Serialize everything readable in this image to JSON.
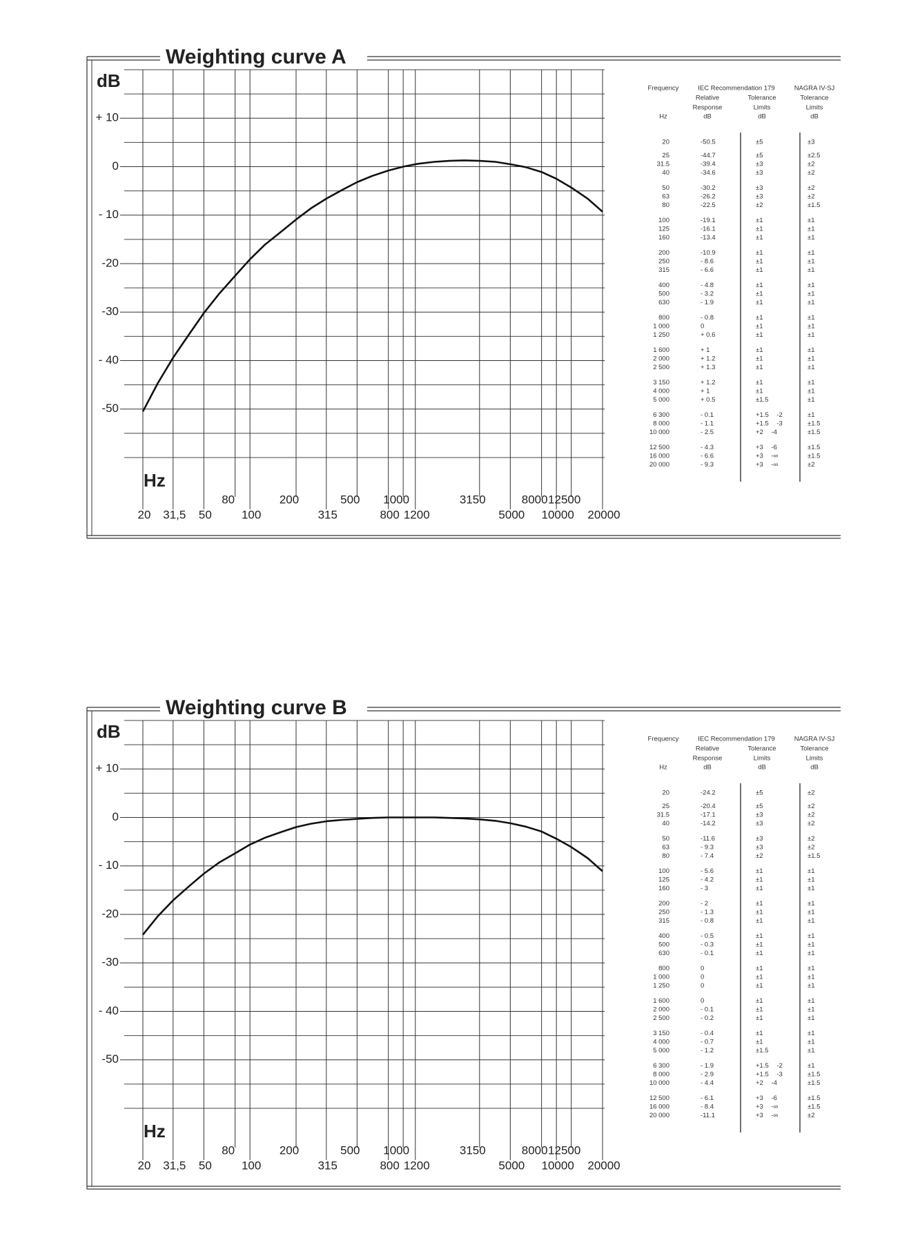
{
  "chart_data": [
    {
      "type": "line",
      "title": "Weighting curve A",
      "y_label": "dB",
      "x_label": "Hz",
      "xscale": "log",
      "grid": true,
      "xlim": [
        20,
        20000
      ],
      "ylim": [
        -60,
        20
      ],
      "xticks": [
        20,
        {
          "value": 31.5,
          "label": "31,5"
        },
        50,
        80,
        100,
        200,
        315,
        500,
        800,
        1000,
        1200,
        3150,
        5000,
        8000,
        10000,
        12500,
        20000
      ],
      "yticks": [
        {
          "value": 10,
          "label": "+ 10"
        },
        0,
        {
          "value": -10,
          "label": "- 10"
        },
        {
          "value": -20,
          "label": "-20"
        },
        {
          "value": -30,
          "label": "-30"
        },
        {
          "value": -40,
          "label": "- 40"
        },
        {
          "value": -50,
          "label": "-50"
        }
      ],
      "minor_yticks": [
        20,
        15,
        5,
        -5,
        -15,
        -25,
        -35,
        -45,
        -55,
        -60
      ],
      "series": [
        {
          "color": "#111111",
          "x": [
            20,
            25,
            31.5,
            40,
            50,
            63,
            80,
            100,
            125,
            160,
            200,
            250,
            315,
            400,
            500,
            630,
            800,
            1000,
            1250,
            1600,
            2000,
            2500,
            3150,
            4000,
            5000,
            6300,
            8000,
            10000,
            12500,
            16000,
            20000
          ],
          "values": [
            -50.5,
            -44.7,
            -39.4,
            -34.6,
            -30.2,
            -26.2,
            -22.5,
            -19.1,
            -16.1,
            -13.4,
            -10.9,
            -8.6,
            -6.6,
            -4.8,
            -3.2,
            -1.9,
            -0.8,
            0,
            0.6,
            1,
            1.2,
            1.3,
            1.2,
            1,
            0.5,
            -0.1,
            -1.1,
            -2.5,
            -4.3,
            -6.6,
            -9.3
          ]
        }
      ],
      "table": {
        "header": {
          "frequency": "Frequency",
          "hz": "Hz",
          "iec": "IEC Recommendation 179",
          "relative": [
            "Relative",
            "Response",
            "dB"
          ],
          "tolerance": [
            "Tolerance",
            "Limits",
            "dB"
          ],
          "nagra": [
            "NAGRA IV-SJ",
            "Tolerance",
            "Limits",
            "dB"
          ]
        },
        "rows": [
          [
            "20",
            "-50.5",
            "±5",
            "±3"
          ],
          [
            "25",
            "-44.7",
            "±5",
            "±2.5"
          ],
          [
            "31.5",
            "-39.4",
            "±3",
            "±2"
          ],
          [
            "40",
            "-34.6",
            "±3",
            "±2"
          ],
          [
            "50",
            "-30.2",
            "±3",
            "±2"
          ],
          [
            "63",
            "-26.2",
            "±3",
            "±2"
          ],
          [
            "80",
            "-22.5",
            "±2",
            "±1.5"
          ],
          [
            "100",
            "-19.1",
            "±1",
            "±1"
          ],
          [
            "125",
            "-16.1",
            "±1",
            "±1"
          ],
          [
            "160",
            "-13.4",
            "±1",
            "±1"
          ],
          [
            "200",
            "-10.9",
            "±1",
            "±1"
          ],
          [
            "250",
            "- 8.6",
            "±1",
            "±1"
          ],
          [
            "315",
            "- 6.6",
            "±1",
            "±1"
          ],
          [
            "400",
            "- 4.8",
            "±1",
            "±1"
          ],
          [
            "500",
            "- 3.2",
            "±1",
            "±1"
          ],
          [
            "630",
            "- 1.9",
            "±1",
            "±1"
          ],
          [
            "800",
            "- 0.8",
            "±1",
            "±1"
          ],
          [
            "1 000",
            "0",
            "±1",
            "±1"
          ],
          [
            "1 250",
            "+ 0.6",
            "±1",
            "±1"
          ],
          [
            "1 600",
            "+ 1",
            "±1",
            "±1"
          ],
          [
            "2 000",
            "+ 1.2",
            "±1",
            "±1"
          ],
          [
            "2 500",
            "+ 1.3",
            "±1",
            "±1"
          ],
          [
            "3 150",
            "+ 1.2",
            "±1",
            "±1"
          ],
          [
            "4 000",
            "+ 1",
            "±1",
            "±1"
          ],
          [
            "5 000",
            "+ 0.5",
            "±1.5",
            "±1"
          ],
          [
            "6 300",
            "- 0.1",
            "+1.5 -2",
            "±1"
          ],
          [
            "8 000",
            "- 1.1",
            "+1.5 -3",
            "±1.5"
          ],
          [
            "10 000",
            "- 2.5",
            "+2 -4",
            "±1.5"
          ],
          [
            "12 500",
            "- 4.3",
            "+3 -6",
            "±1.5"
          ],
          [
            "16 000",
            "- 6.6",
            "+3 -∞",
            "±1.5"
          ],
          [
            "20 000",
            "- 9.3",
            "+3 -∞",
            "±2"
          ]
        ]
      }
    },
    {
      "type": "line",
      "title": "Weighting curve B",
      "y_label": "dB",
      "x_label": "Hz",
      "xscale": "log",
      "grid": true,
      "xlim": [
        20,
        20000
      ],
      "ylim": [
        -60,
        20
      ],
      "xticks": [
        20,
        {
          "value": 31.5,
          "label": "31,5"
        },
        50,
        80,
        100,
        200,
        315,
        500,
        800,
        1000,
        1200,
        3150,
        5000,
        8000,
        10000,
        12500,
        20000
      ],
      "yticks": [
        {
          "value": 10,
          "label": "+ 10"
        },
        0,
        {
          "value": -10,
          "label": "- 10"
        },
        {
          "value": -20,
          "label": "-20"
        },
        {
          "value": -30,
          "label": "-30"
        },
        {
          "value": -40,
          "label": "- 40"
        },
        {
          "value": -50,
          "label": "-50"
        }
      ],
      "minor_yticks": [
        20,
        15,
        5,
        -5,
        -15,
        -25,
        -35,
        -45,
        -55,
        -60
      ],
      "series": [
        {
          "color": "#111111",
          "x": [
            20,
            25,
            31.5,
            40,
            50,
            63,
            80,
            100,
            125,
            160,
            200,
            250,
            315,
            400,
            500,
            630,
            800,
            1000,
            1250,
            1600,
            2000,
            2500,
            3150,
            4000,
            5000,
            6300,
            8000,
            10000,
            12500,
            16000,
            20000
          ],
          "values": [
            -24.2,
            -20.4,
            -17.1,
            -14.2,
            -11.6,
            -9.3,
            -7.4,
            -5.6,
            -4.2,
            -3,
            -2,
            -1.3,
            -0.8,
            -0.5,
            -0.3,
            -0.1,
            0,
            0,
            0,
            0,
            -0.1,
            -0.2,
            -0.4,
            -0.7,
            -1.2,
            -1.9,
            -2.9,
            -4.4,
            -6.1,
            -8.4,
            -11.1
          ]
        }
      ],
      "table": {
        "header": {
          "frequency": "Frequency",
          "hz": "Hz",
          "iec": "IEC Recommendation 179",
          "relative": [
            "Relative",
            "Response",
            "dB"
          ],
          "tolerance": [
            "Tolerance",
            "Limits",
            "dB"
          ],
          "nagra": [
            "NAGRA IV-SJ",
            "Tolerance",
            "Limits",
            "dB"
          ]
        },
        "rows": [
          [
            "20",
            "-24.2",
            "±5",
            "±2"
          ],
          [
            "25",
            "-20.4",
            "±5",
            "±2"
          ],
          [
            "31.5",
            "-17.1",
            "±3",
            "±2"
          ],
          [
            "40",
            "-14.2",
            "±3",
            "±2"
          ],
          [
            "50",
            "-11.6",
            "±3",
            "±2"
          ],
          [
            "63",
            "- 9.3",
            "±3",
            "±2"
          ],
          [
            "80",
            "- 7.4",
            "±2",
            "±1.5"
          ],
          [
            "100",
            "- 5.6",
            "±1",
            "±1"
          ],
          [
            "125",
            "- 4.2",
            "±1",
            "±1"
          ],
          [
            "160",
            "- 3",
            "±1",
            "±1"
          ],
          [
            "200",
            "- 2",
            "±1",
            "±1"
          ],
          [
            "250",
            "- 1.3",
            "±1",
            "±1"
          ],
          [
            "315",
            "- 0.8",
            "±1",
            "±1"
          ],
          [
            "400",
            "- 0.5",
            "±1",
            "±1"
          ],
          [
            "500",
            "- 0.3",
            "±1",
            "±1"
          ],
          [
            "630",
            "- 0.1",
            "±1",
            "±1"
          ],
          [
            "800",
            "0",
            "±1",
            "±1"
          ],
          [
            "1 000",
            "0",
            "±1",
            "±1"
          ],
          [
            "1 250",
            "0",
            "±1",
            "±1"
          ],
          [
            "1 600",
            "0",
            "±1",
            "±1"
          ],
          [
            "2 000",
            "- 0.1",
            "±1",
            "±1"
          ],
          [
            "2 500",
            "- 0.2",
            "±1",
            "±1"
          ],
          [
            "3 150",
            "- 0.4",
            "±1",
            "±1"
          ],
          [
            "4 000",
            "- 0.7",
            "±1",
            "±1"
          ],
          [
            "5 000",
            "- 1.2",
            "±1.5",
            "±1"
          ],
          [
            "6 300",
            "- 1.9",
            "+1.5 -2",
            "±1"
          ],
          [
            "8 000",
            "- 2.9",
            "+1.5 -3",
            "±1.5"
          ],
          [
            "10 000",
            "- 4.4",
            "+2 -4",
            "±1.5"
          ],
          [
            "12 500",
            "- 6.1",
            "+3 -6",
            "±1.5"
          ],
          [
            "16 000",
            "- 8.4",
            "+3 -∞",
            "±1.5"
          ],
          [
            "20 000",
            "-11.1",
            "+3 -∞",
            "±2"
          ]
        ]
      }
    }
  ]
}
